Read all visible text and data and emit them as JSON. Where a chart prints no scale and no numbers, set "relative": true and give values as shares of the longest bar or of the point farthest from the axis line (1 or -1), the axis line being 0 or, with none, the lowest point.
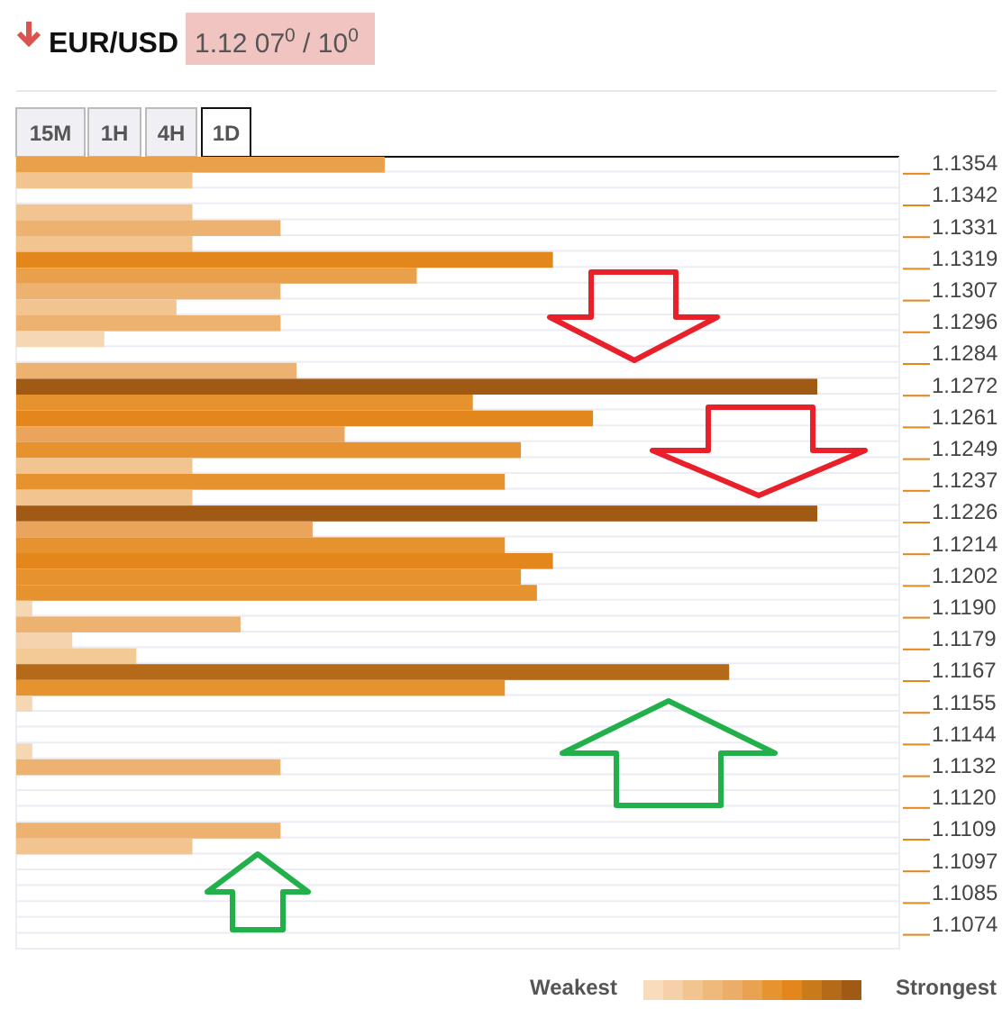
{
  "chart_data": {
    "type": "bar",
    "orientation": "horizontal",
    "relative": true,
    "title": "EUR/USD",
    "subtitle": "1.12 07$^{0}$ / 10$^{0}$",
    "categories": [
      "1.1354",
      null,
      "1.1342",
      null,
      "1.1331",
      null,
      "1.1319",
      null,
      "1.1307",
      null,
      "1.1296",
      null,
      "1.1284",
      null,
      "1.1272",
      null,
      "1.1261",
      null,
      "1.1249",
      null,
      "1.1237",
      null,
      "1.1226",
      null,
      "1.1214",
      null,
      "1.1202",
      null,
      "1.1190",
      null,
      "1.1179",
      null,
      "1.1167",
      null,
      "1.1155",
      null,
      "1.1144",
      null,
      "1.1132",
      null,
      "1.1120",
      null,
      "1.1109",
      null,
      "1.1097",
      null,
      "1.1085",
      null,
      "1.1074",
      null
    ],
    "values": [
      0.46,
      0.22,
      null,
      0.22,
      0.33,
      0.22,
      0.67,
      0.5,
      0.33,
      0.2,
      0.33,
      0.11,
      null,
      0.35,
      1,
      0.57,
      0.72,
      0.41,
      0.63,
      0.22,
      0.61,
      0.22,
      1,
      0.37,
      0.61,
      0.67,
      0.63,
      0.65,
      0.02,
      0.28,
      0.07,
      0.15,
      0.89,
      0.61,
      0.02,
      null,
      null,
      0.02,
      0.33,
      null,
      null,
      null,
      0.33,
      0.22,
      null,
      null,
      null,
      null,
      null,
      null
    ],
    "colors": [
      "#e8a04a",
      "#f2c490",
      null,
      "#f2c490",
      "#edb170",
      "#f2c490",
      "#e3861c",
      "#e8a04a",
      "#edb170",
      "#f2c490",
      "#edb170",
      "#f6d7b3",
      null,
      "#edb170",
      "#a05a14",
      "#e6922f",
      "#e3861c",
      "#eaa45c",
      "#e6922f",
      "#f2c490",
      "#e6922f",
      "#f2c490",
      "#a05a14",
      "#eaa45c",
      "#e6922f",
      "#e3861c",
      "#e6922f",
      "#e6922f",
      "#f6d7b3",
      "#edb170",
      "#f5d3ae",
      "#f3c995",
      "#b46a18",
      "#e6922f",
      "#f6d7b3",
      null,
      null,
      "#f6d7b3",
      "#edb170",
      null,
      null,
      null,
      "#edb170",
      "#f2c490",
      null,
      null,
      null,
      null,
      null,
      null
    ],
    "annotations": [
      "15M",
      "1H",
      "4H",
      "1D",
      "Weakest",
      "Strongest"
    ]
  }
}
